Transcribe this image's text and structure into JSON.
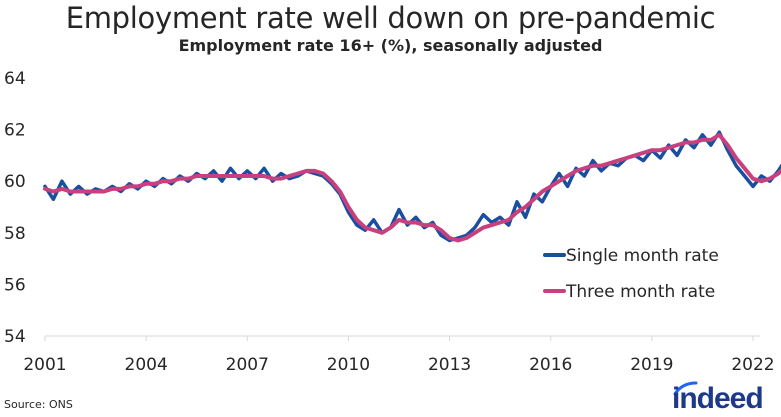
{
  "header": {
    "title": "Employment rate well down on pre-pandemic",
    "subtitle": "Employment rate 16+ (%), seasonally adjusted"
  },
  "footer": {
    "source": "Source: ONS",
    "logo_text": "indeed"
  },
  "chart_data": {
    "type": "line",
    "title": "Employment rate well down on pre-pandemic",
    "subtitle": "Employment rate 16+ (%), seasonally adjusted",
    "xlabel": "",
    "ylabel": "",
    "xlim": [
      2001,
      2022.25
    ],
    "ylim": [
      54,
      64
    ],
    "yticks": [
      54,
      56,
      58,
      60,
      62,
      64
    ],
    "xticks": [
      2001,
      2004,
      2007,
      2010,
      2013,
      2016,
      2019,
      2022
    ],
    "grid": false,
    "legend_position": "bottom-right",
    "x_step_years": 0.25,
    "x_start": 2001,
    "series": [
      {
        "name": "Single month rate",
        "color": "#1a4fa0",
        "values": [
          59.8,
          59.3,
          60.0,
          59.5,
          59.8,
          59.5,
          59.7,
          59.6,
          59.8,
          59.6,
          59.9,
          59.7,
          60.0,
          59.8,
          60.1,
          59.9,
          60.2,
          60.0,
          60.3,
          60.1,
          60.4,
          60.0,
          60.5,
          60.1,
          60.4,
          60.1,
          60.5,
          60.0,
          60.3,
          60.1,
          60.2,
          60.4,
          60.3,
          60.2,
          59.9,
          59.5,
          58.8,
          58.3,
          58.1,
          58.5,
          58.0,
          58.2,
          58.9,
          58.3,
          58.6,
          58.2,
          58.4,
          57.9,
          57.7,
          57.8,
          57.9,
          58.2,
          58.7,
          58.4,
          58.6,
          58.3,
          59.2,
          58.6,
          59.5,
          59.2,
          59.8,
          60.3,
          59.8,
          60.5,
          60.2,
          60.8,
          60.4,
          60.7,
          60.6,
          60.9,
          61.0,
          60.8,
          61.2,
          60.9,
          61.4,
          61.0,
          61.6,
          61.3,
          61.8,
          61.4,
          61.9,
          61.2,
          60.6,
          60.2,
          59.8,
          60.2,
          60.0,
          60.4,
          60.9,
          60.6,
          61.0,
          60.4
        ]
      },
      {
        "name": "Three month rate",
        "color": "#c8407e",
        "values": [
          59.7,
          59.6,
          59.7,
          59.6,
          59.6,
          59.6,
          59.6,
          59.6,
          59.7,
          59.7,
          59.8,
          59.8,
          59.9,
          59.9,
          60.0,
          60.0,
          60.1,
          60.1,
          60.2,
          60.2,
          60.2,
          60.2,
          60.2,
          60.2,
          60.2,
          60.2,
          60.2,
          60.1,
          60.1,
          60.2,
          60.3,
          60.4,
          60.4,
          60.3,
          60.0,
          59.6,
          59.0,
          58.5,
          58.2,
          58.1,
          58.0,
          58.2,
          58.5,
          58.4,
          58.4,
          58.3,
          58.3,
          58.1,
          57.8,
          57.7,
          57.8,
          58.0,
          58.2,
          58.3,
          58.4,
          58.5,
          58.8,
          59.0,
          59.3,
          59.6,
          59.8,
          60.0,
          60.2,
          60.4,
          60.5,
          60.6,
          60.6,
          60.7,
          60.8,
          60.9,
          61.0,
          61.1,
          61.2,
          61.2,
          61.3,
          61.4,
          61.5,
          61.5,
          61.6,
          61.6,
          61.8,
          61.4,
          60.9,
          60.5,
          60.1,
          60.0,
          60.1,
          60.3,
          60.6,
          60.7,
          60.7,
          60.7
        ]
      }
    ]
  }
}
